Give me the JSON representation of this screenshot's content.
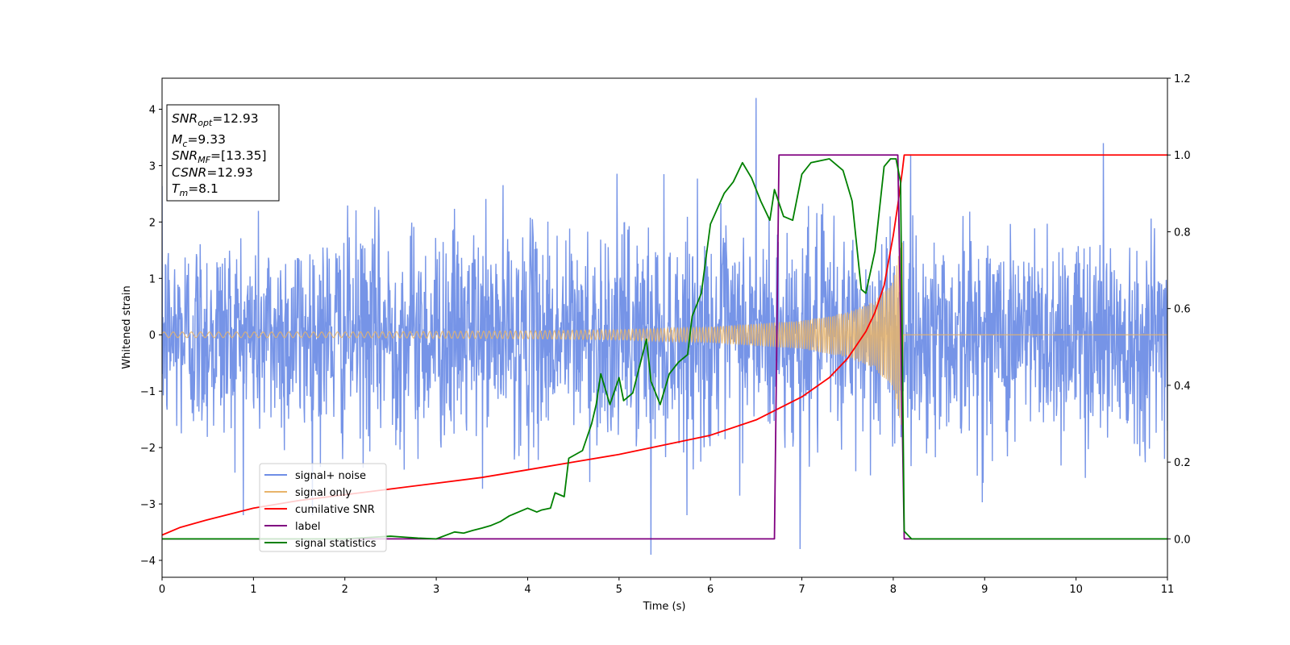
{
  "chart_data": {
    "type": "line",
    "xlabel": "Time (s)",
    "ylabel": "Whitened strain",
    "xlim": [
      0,
      11
    ],
    "ylim": [
      -4.3,
      4.55
    ],
    "y2lim": [
      -0.1,
      1.2
    ],
    "xticks": [
      0,
      1,
      2,
      3,
      4,
      5,
      6,
      7,
      8,
      9,
      10,
      11
    ],
    "yticks": [
      -4,
      -3,
      -2,
      -1,
      0,
      1,
      2,
      3,
      4
    ],
    "y2ticks": [
      "0.0",
      "0.2",
      "0.4",
      "0.6",
      "0.8",
      "1.0",
      "1.2"
    ],
    "legend_position": "lower-left",
    "info_box": {
      "snr_opt": "=12.93",
      "mc": "=9.33",
      "snr_mf": "=[13.35]",
      "csnr": "=12.93",
      "tm": "=8.1"
    },
    "series": [
      {
        "name": "signal+ noise",
        "axis": "left",
        "color": "#6f8ee6",
        "description": "noisy whitened strain, roughly zero-mean, amplitude mostly within ±2.5, spikes up to 4.2 and down to -3.9",
        "peaks": [
          [
            6.5,
            4.2
          ],
          [
            5.35,
            -3.9
          ],
          [
            6.98,
            -3.8
          ],
          [
            10.3,
            3.4
          ]
        ]
      },
      {
        "name": "signal only",
        "axis": "left",
        "color": "#e8b46a",
        "description": "chirp oscillation growing in amplitude until ~8.1 s, then flat 0",
        "envelope": [
          [
            0.0,
            0.05
          ],
          [
            2.0,
            0.05
          ],
          [
            4.0,
            0.07
          ],
          [
            5.0,
            0.09
          ],
          [
            6.0,
            0.14
          ],
          [
            7.0,
            0.25
          ],
          [
            7.5,
            0.4
          ],
          [
            7.8,
            0.6
          ],
          [
            8.0,
            1.0
          ],
          [
            8.1,
            1.7
          ],
          [
            8.11,
            0.0
          ],
          [
            11.0,
            0.0
          ]
        ]
      },
      {
        "name": "cumilative SNR",
        "axis": "right",
        "color": "#ff0000",
        "x": [
          0,
          0.2,
          0.5,
          1,
          1.5,
          2,
          2.5,
          3,
          3.5,
          4,
          4.5,
          5,
          5.5,
          6,
          6.5,
          7,
          7.3,
          7.5,
          7.7,
          7.8,
          7.9,
          8.0,
          8.05,
          8.1,
          8.12,
          11
        ],
        "y": [
          0.01,
          0.03,
          0.05,
          0.08,
          0.1,
          0.115,
          0.13,
          0.145,
          0.16,
          0.18,
          0.2,
          0.22,
          0.245,
          0.27,
          0.31,
          0.37,
          0.42,
          0.47,
          0.54,
          0.59,
          0.66,
          0.79,
          0.87,
          0.96,
          1.0,
          1.0
        ]
      },
      {
        "name": "label",
        "axis": "right",
        "color": "#800080",
        "x": [
          0,
          6.7,
          6.75,
          8.05,
          8.12,
          11
        ],
        "y": [
          0,
          0,
          1,
          1,
          0,
          0
        ]
      },
      {
        "name": "signal statistics",
        "axis": "right",
        "color": "#008000",
        "x": [
          0,
          0.5,
          1,
          1.5,
          2,
          2.5,
          2.8,
          3.0,
          3.2,
          3.3,
          3.4,
          3.5,
          3.6,
          3.7,
          3.8,
          3.9,
          4.0,
          4.1,
          4.15,
          4.25,
          4.3,
          4.4,
          4.45,
          4.6,
          4.7,
          4.75,
          4.8,
          4.9,
          5.0,
          5.05,
          5.15,
          5.3,
          5.35,
          5.45,
          5.55,
          5.65,
          5.75,
          5.8,
          5.9,
          6.0,
          6.15,
          6.25,
          6.35,
          6.45,
          6.55,
          6.65,
          6.7,
          6.8,
          6.9,
          7.0,
          7.1,
          7.2,
          7.3,
          7.45,
          7.55,
          7.65,
          7.7,
          7.8,
          7.9,
          7.97,
          8.03,
          8.08,
          8.12,
          8.2,
          11
        ],
        "y": [
          0.0,
          0.0,
          0.0,
          0.0,
          0.0,
          0.007,
          0.002,
          0.0,
          0.018,
          0.015,
          0.022,
          0.028,
          0.035,
          0.045,
          0.06,
          0.07,
          0.08,
          0.07,
          0.075,
          0.08,
          0.12,
          0.11,
          0.21,
          0.23,
          0.3,
          0.35,
          0.43,
          0.35,
          0.42,
          0.36,
          0.38,
          0.52,
          0.41,
          0.35,
          0.43,
          0.46,
          0.48,
          0.58,
          0.64,
          0.82,
          0.9,
          0.93,
          0.98,
          0.94,
          0.88,
          0.83,
          0.91,
          0.84,
          0.83,
          0.95,
          0.98,
          0.985,
          0.99,
          0.96,
          0.88,
          0.65,
          0.64,
          0.75,
          0.97,
          0.99,
          0.99,
          0.93,
          0.02,
          0.0,
          0.0
        ]
      }
    ]
  }
}
